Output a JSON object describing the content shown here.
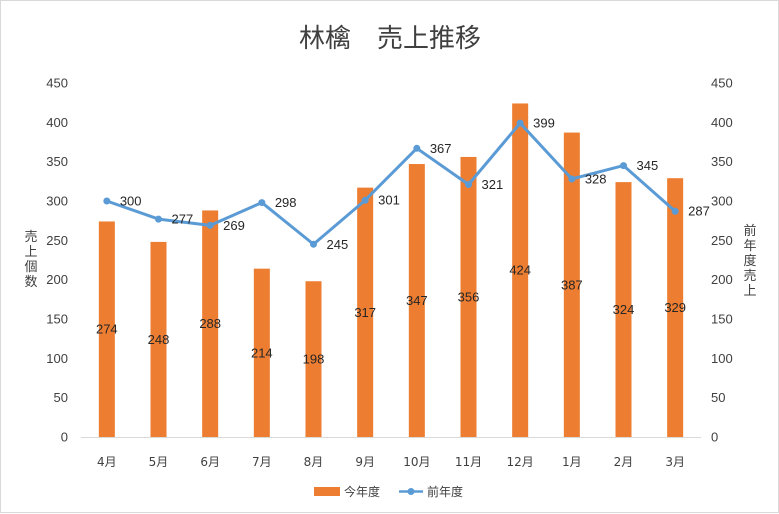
{
  "chart_data": {
    "type": "bar",
    "title": "林檎　売上推移",
    "categories": [
      "4月",
      "5月",
      "6月",
      "7月",
      "8月",
      "9月",
      "10月",
      "11月",
      "12月",
      "1月",
      "2月",
      "3月"
    ],
    "series": [
      {
        "name": "今年度",
        "type": "bar",
        "axis": "left",
        "color": "#ed7d31",
        "values": [
          274,
          248,
          288,
          214,
          198,
          317,
          347,
          356,
          424,
          387,
          324,
          329
        ]
      },
      {
        "name": "前年度",
        "type": "line",
        "axis": "right",
        "color": "#5b9bd5",
        "values": [
          300,
          277,
          269,
          298,
          245,
          301,
          367,
          321,
          399,
          328,
          345,
          287
        ]
      }
    ],
    "ylabel": "売上個数",
    "y2label": "前年度売上",
    "ylim": [
      0,
      450
    ],
    "y2lim": [
      0,
      450
    ],
    "yticks": [
      "0",
      "50",
      "100",
      "150",
      "200",
      "250",
      "300",
      "350",
      "400",
      "450"
    ],
    "y2ticks": [
      "0",
      "50",
      "100",
      "150",
      "200",
      "250",
      "300",
      "350",
      "400",
      "450"
    ],
    "legend_position": "bottom",
    "grid": false
  }
}
